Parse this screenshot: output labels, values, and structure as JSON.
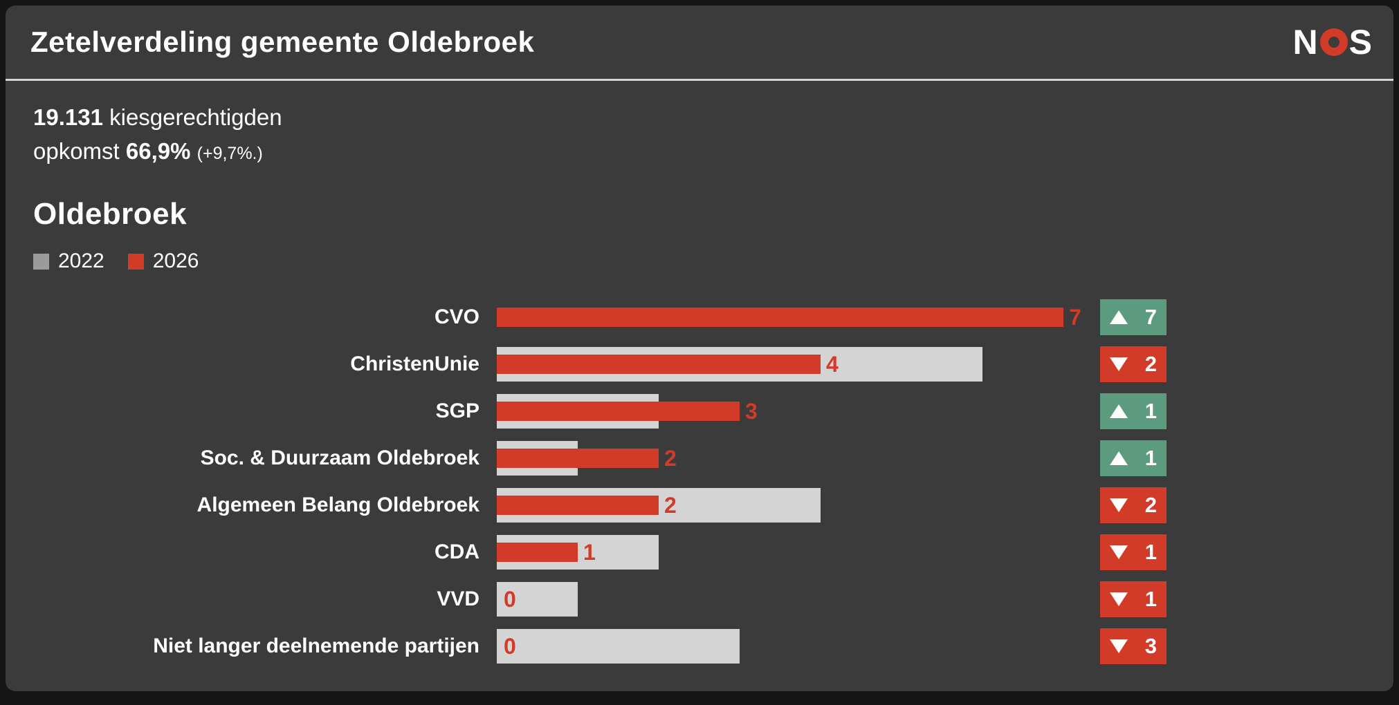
{
  "header": {
    "title": "Zetelverdeling gemeente Oldebroek",
    "logo": {
      "left": "N",
      "o": "O",
      "right": "S",
      "full": "NOS"
    }
  },
  "stats": {
    "electorate_value": "19.131",
    "electorate_label": "kiesgerechtigden",
    "turnout_prefix": "opkomst",
    "turnout_value": "66,9%",
    "turnout_change": "(+9,7%.)"
  },
  "chart_data": {
    "type": "bar",
    "orientation": "horizontal",
    "title": "Oldebroek",
    "unit": "zetels",
    "xlim": [
      0,
      7
    ],
    "grid": false,
    "legend_position": "top-left",
    "legend": [
      {
        "label": "2022",
        "color": "#9b9b9b"
      },
      {
        "label": "2026",
        "color": "#d23b28"
      }
    ],
    "categories": [
      "CVO",
      "ChristenUnie",
      "SGP",
      "Soc. & Duurzaam Oldebroek",
      "Algemeen Belang Oldebroek",
      "CDA",
      "VVD",
      "Niet langer deelnemende partijen"
    ],
    "series": [
      {
        "name": "2022",
        "values": [
          0,
          6,
          2,
          1,
          4,
          2,
          1,
          3
        ]
      },
      {
        "name": "2026",
        "values": [
          7,
          4,
          3,
          2,
          2,
          1,
          0,
          0
        ]
      }
    ],
    "value_labels": [
      "7",
      "4",
      "3",
      "2",
      "2",
      "1",
      "0",
      "0"
    ],
    "changes": [
      {
        "direction": "up",
        "label": "7"
      },
      {
        "direction": "down",
        "label": "2"
      },
      {
        "direction": "up",
        "label": "1"
      },
      {
        "direction": "up",
        "label": "1"
      },
      {
        "direction": "down",
        "label": "2"
      },
      {
        "direction": "down",
        "label": "1"
      },
      {
        "direction": "down",
        "label": "1"
      },
      {
        "direction": "down",
        "label": "3"
      }
    ]
  },
  "colors": {
    "bar_2026_red": "#d23b28",
    "bar_2022_gray": "#d4d4d4",
    "legend_2022_gray": "#9b9b9b",
    "gain_green": "#5c9b80",
    "loss_red": "#d23b28",
    "card_background": "#3b3b3b",
    "page_background": "#151515",
    "divider": "#d4d4d4",
    "text": "#ffffff"
  }
}
